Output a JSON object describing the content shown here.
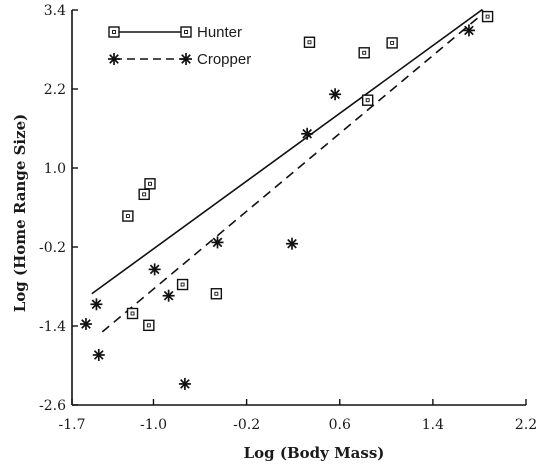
{
  "chart_data": {
    "type": "scatter",
    "xlabel": "Log (Body Mass)",
    "ylabel": "Log (Home Range Size)",
    "xlim": [
      -1.7,
      2.2
    ],
    "ylim": [
      -2.6,
      3.4
    ],
    "x_ticks": [
      -1.7,
      -1.0,
      -0.2,
      0.6,
      1.4,
      2.2
    ],
    "x_tick_labels": [
      "-1.7",
      "-1.0",
      "-0.2",
      "0.6",
      "1.4",
      "2.2"
    ],
    "y_ticks": [
      -2.6,
      -1.4,
      -0.2,
      1.0,
      2.2,
      3.4
    ],
    "y_tick_labels": [
      "-2.6",
      "-1.4",
      "-0.2",
      "1.0",
      "2.2",
      "3.4"
    ],
    "grid": false,
    "legend_position": "top-left",
    "series": [
      {
        "name": "Hunter",
        "marker": "square",
        "line_style": "solid",
        "points": [
          {
            "x": -1.22,
            "y": 0.27
          },
          {
            "x": -1.08,
            "y": 0.6
          },
          {
            "x": -1.03,
            "y": 0.76
          },
          {
            "x": -0.75,
            "y": -0.77
          },
          {
            "x": -1.18,
            "y": -1.21
          },
          {
            "x": -1.04,
            "y": -1.39
          },
          {
            "x": -0.46,
            "y": -0.91
          },
          {
            "x": 0.34,
            "y": 2.91
          },
          {
            "x": 0.81,
            "y": 2.75
          },
          {
            "x": 1.05,
            "y": 2.9
          },
          {
            "x": 0.84,
            "y": 2.03
          },
          {
            "x": 1.87,
            "y": 3.3
          }
        ],
        "fit_line": [
          {
            "x": -1.53,
            "y": -0.91
          },
          {
            "x": 1.82,
            "y": 3.4
          },
          {
            "x": 1.87,
            "y": 3.3
          }
        ]
      },
      {
        "name": "Cropper",
        "marker": "asterisk",
        "line_style": "dashed",
        "points": [
          {
            "x": -1.58,
            "y": -1.37
          },
          {
            "x": -1.49,
            "y": -1.07
          },
          {
            "x": -1.47,
            "y": -1.84
          },
          {
            "x": -0.99,
            "y": -0.54
          },
          {
            "x": -0.87,
            "y": -0.94
          },
          {
            "x": -0.73,
            "y": -2.28
          },
          {
            "x": -0.45,
            "y": -0.13
          },
          {
            "x": 0.19,
            "y": -0.15
          },
          {
            "x": 0.32,
            "y": 1.52
          },
          {
            "x": 0.56,
            "y": 2.12
          },
          {
            "x": 1.71,
            "y": 3.09
          }
        ],
        "fit_line": [
          {
            "x": -1.44,
            "y": -1.49
          },
          {
            "x": 1.8,
            "y": 3.3
          }
        ]
      }
    ]
  }
}
